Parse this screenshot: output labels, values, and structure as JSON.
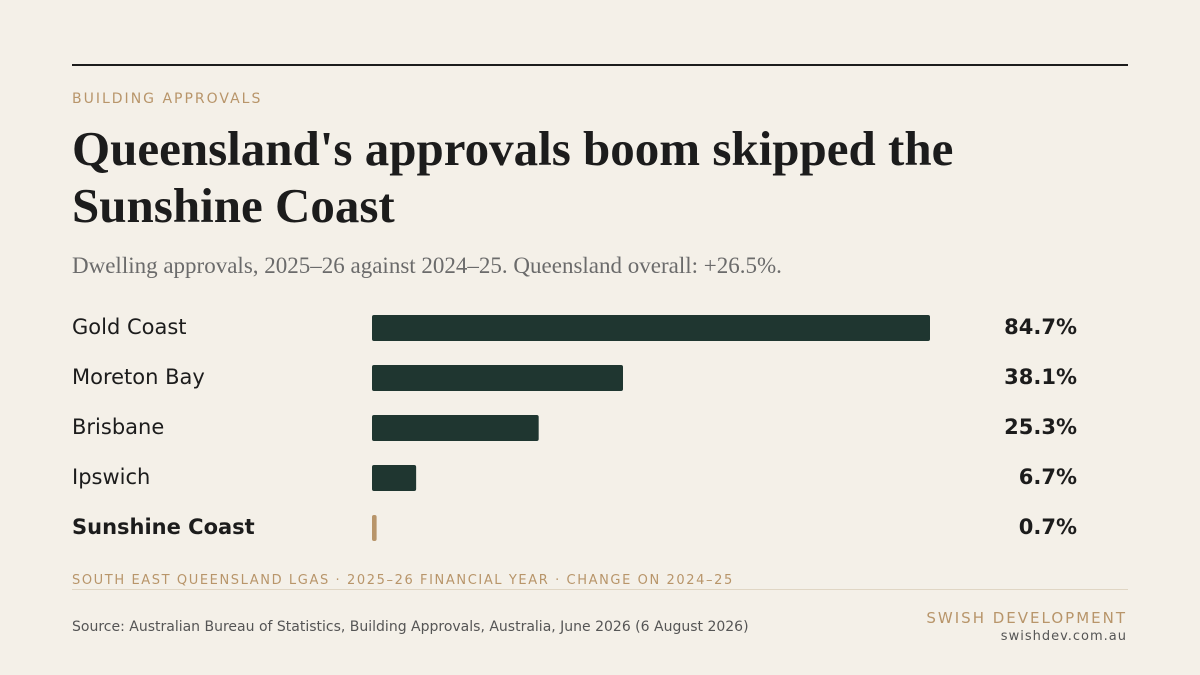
{
  "chart_data": {
    "type": "hbar",
    "kicker": "BUILDING APPROVALS",
    "title": "Queensland's approvals boom skipped the Sunshine Coast",
    "subtitle": "Dwelling approvals, 2025–26 against 2024–25. Queensland overall: +26.5%.",
    "categories": [
      "Gold Coast",
      "Moreton Bay",
      "Brisbane",
      "Ipswich",
      "Sunshine Coast"
    ],
    "values": [
      84.7,
      38.1,
      25.3,
      6.7,
      0.7
    ],
    "value_labels": [
      "84.7%",
      "38.1%",
      "25.3%",
      "6.7%",
      "0.7%"
    ],
    "colors": [
      "#1f3630",
      "#1f3630",
      "#1f3630",
      "#1f3630",
      "#b8956a"
    ],
    "footnote": "SOUTH EAST QUEENSLAND LGAS · 2025–26 FINANCIAL YEAR · CHANGE ON 2024–25",
    "source": "Source: Australian Bureau of Statistics, Building Approvals, Australia, June 2026 (6 August 2026)",
    "brand": "SWISH DEVELOPMENT",
    "website": "swishdev.com.au"
  }
}
